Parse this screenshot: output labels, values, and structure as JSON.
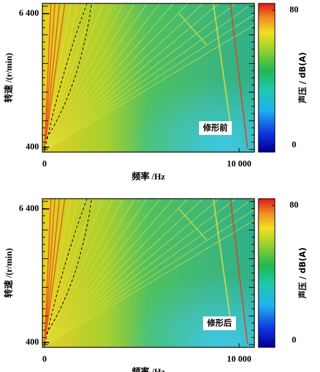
{
  "chart_data": [
    {
      "type": "heatmap",
      "annotation": "修形前",
      "xlabel": "频率 /Hz",
      "ylabel": "转速 /(r/min)",
      "colorbar_label": "声压 / dB(A)",
      "xlim": [
        -110,
        10780
      ],
      "xticks": [
        0,
        {
          "value": 10000,
          "label": "10 000"
        }
      ],
      "ylim": [
        180,
        6860
      ],
      "yticks": [
        {
          "value": 400,
          "label": "400"
        },
        {
          "value": 6400,
          "label": "6 400"
        }
      ],
      "clim": [
        -4,
        84
      ],
      "cticks": [
        0,
        80
      ]
    },
    {
      "type": "heatmap",
      "annotation": "修形后",
      "xlabel": "频率 /Hz",
      "ylabel": "转速 /(r/min)",
      "colorbar_label": "声压 / dB(A)",
      "xlim": [
        -110,
        10780
      ],
      "xticks": [
        0,
        {
          "value": 10000,
          "label": "10 000"
        }
      ],
      "ylim": [
        180,
        6860
      ],
      "yticks": [
        {
          "value": 400,
          "label": "400"
        },
        {
          "value": 6400,
          "label": "6 400"
        }
      ],
      "clim": [
        -4,
        84
      ],
      "cticks": [
        0,
        80
      ]
    }
  ]
}
